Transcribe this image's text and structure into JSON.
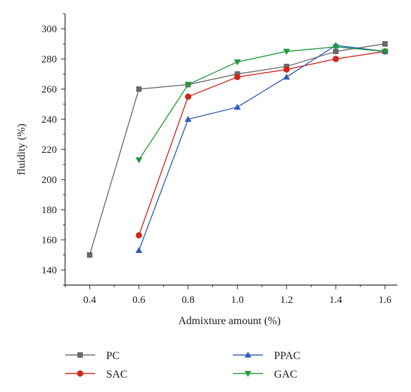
{
  "chart_data": {
    "type": "line",
    "xlabel": "Admixture amount (%)",
    "ylabel": "fluidity (%)",
    "xlim": [
      0.3,
      1.65
    ],
    "ylim": [
      130,
      310
    ],
    "x_ticks": [
      0.4,
      0.6,
      0.8,
      1.0,
      1.2,
      1.4,
      1.6
    ],
    "x_tick_labels": [
      "0.4",
      "0.6",
      "0.8",
      "1.0",
      "1.2",
      "1.4",
      "1.6"
    ],
    "y_ticks": [
      140,
      160,
      180,
      200,
      220,
      240,
      260,
      280,
      300
    ],
    "y_tick_labels": [
      "140",
      "160",
      "180",
      "200",
      "220",
      "240",
      "260",
      "280",
      "300"
    ],
    "grid": false,
    "legend_position": "bottom",
    "series": [
      {
        "name": "PC",
        "color": "#6b6b6b",
        "marker": "square",
        "x": [
          0.4,
          0.6,
          0.8,
          1.0,
          1.2,
          1.4,
          1.6
        ],
        "y": [
          150,
          260,
          263,
          270,
          275,
          285,
          290
        ]
      },
      {
        "name": "SAC",
        "color": "#d0271d",
        "marker": "circle",
        "x": [
          0.6,
          0.8,
          1.0,
          1.2,
          1.4,
          1.6
        ],
        "y": [
          163,
          255,
          268,
          273,
          280,
          285
        ]
      },
      {
        "name": "PPAC",
        "color": "#2f5db5",
        "marker": "triangle-up",
        "x": [
          0.6,
          0.8,
          1.0,
          1.2,
          1.4,
          1.6
        ],
        "y": [
          153,
          240,
          248,
          268,
          289,
          285
        ]
      },
      {
        "name": "GAC",
        "color": "#1e9a3c",
        "marker": "triangle-down",
        "x": [
          0.6,
          0.8,
          1.0,
          1.2,
          1.4,
          1.6
        ],
        "y": [
          213,
          263,
          278,
          285,
          288,
          285
        ]
      }
    ]
  }
}
